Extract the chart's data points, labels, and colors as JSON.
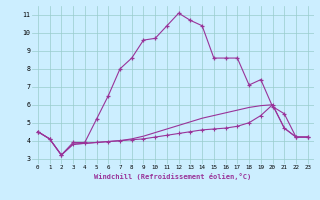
{
  "xlabel": "Windchill (Refroidissement éolien,°C)",
  "bg_color": "#cceeff",
  "grid_color": "#99cccc",
  "line_color": "#993399",
  "xlim": [
    -0.5,
    23.5
  ],
  "ylim": [
    2.7,
    11.5
  ],
  "xticks": [
    0,
    1,
    2,
    3,
    4,
    5,
    6,
    7,
    8,
    9,
    10,
    11,
    12,
    13,
    14,
    15,
    16,
    17,
    18,
    19,
    20,
    21,
    22,
    23
  ],
  "yticks": [
    3,
    4,
    5,
    6,
    7,
    8,
    9,
    10,
    11
  ],
  "line1_x": [
    0,
    1,
    2,
    3,
    4,
    5,
    6,
    7,
    8,
    9,
    10,
    11,
    12,
    13,
    14,
    15,
    16,
    17,
    18,
    19,
    20,
    21,
    22,
    23
  ],
  "line1_y": [
    4.5,
    4.1,
    3.2,
    3.9,
    3.9,
    5.2,
    6.5,
    8.0,
    8.6,
    9.6,
    9.7,
    10.4,
    11.1,
    10.7,
    10.4,
    8.6,
    8.6,
    8.6,
    7.1,
    7.4,
    5.9,
    5.5,
    4.2,
    4.2
  ],
  "line2_x": [
    0,
    1,
    2,
    3,
    4,
    5,
    6,
    7,
    8,
    9,
    10,
    11,
    12,
    13,
    14,
    15,
    16,
    17,
    18,
    19,
    20,
    21,
    22,
    23
  ],
  "line2_y": [
    4.5,
    4.1,
    3.2,
    3.8,
    3.85,
    3.9,
    3.95,
    4.0,
    4.05,
    4.1,
    4.2,
    4.3,
    4.4,
    4.5,
    4.6,
    4.65,
    4.7,
    4.8,
    5.0,
    5.4,
    6.0,
    4.7,
    4.2,
    4.2
  ],
  "line3_x": [
    0,
    1,
    2,
    3,
    4,
    5,
    6,
    7,
    8,
    9,
    10,
    11,
    12,
    13,
    14,
    15,
    16,
    17,
    18,
    19,
    20,
    21,
    22,
    23
  ],
  "line3_y": [
    4.5,
    4.1,
    3.2,
    3.8,
    3.85,
    3.9,
    3.95,
    4.0,
    4.1,
    4.25,
    4.45,
    4.65,
    4.85,
    5.05,
    5.25,
    5.4,
    5.55,
    5.7,
    5.85,
    5.95,
    6.0,
    4.7,
    4.2,
    4.2
  ]
}
